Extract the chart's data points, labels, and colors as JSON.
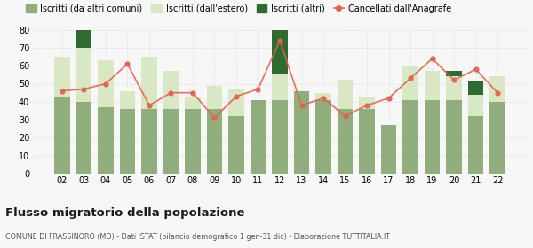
{
  "years": [
    "02",
    "03",
    "04",
    "05",
    "06",
    "07",
    "08",
    "09",
    "10",
    "11",
    "12",
    "13",
    "14",
    "15",
    "16",
    "17",
    "18",
    "19",
    "20",
    "21",
    "22"
  ],
  "iscritti_comuni": [
    43,
    40,
    37,
    36,
    36,
    36,
    36,
    36,
    32,
    41,
    41,
    46,
    41,
    36,
    36,
    27,
    41,
    41,
    41,
    32,
    40
  ],
  "iscritti_estero": [
    22,
    30,
    26,
    10,
    29,
    21,
    7,
    13,
    15,
    0,
    14,
    0,
    4,
    16,
    7,
    0,
    19,
    16,
    13,
    12,
    14
  ],
  "iscritti_altri": [
    0,
    10,
    0,
    0,
    0,
    0,
    0,
    0,
    0,
    0,
    27,
    0,
    0,
    0,
    0,
    0,
    0,
    0,
    3,
    7,
    0
  ],
  "cancellati": [
    46,
    47,
    50,
    61,
    38,
    45,
    45,
    31,
    43,
    47,
    74,
    38,
    42,
    32,
    38,
    42,
    53,
    64,
    52,
    58,
    45
  ],
  "color_comuni": "#8fae7b",
  "color_estero": "#d9e8c4",
  "color_altri": "#2e6b30",
  "color_cancellati": "#e8604c",
  "background_color": "#f7f7f7",
  "grid_color": "#cccccc",
  "title": "Flusso migratorio della popolazione",
  "subtitle": "COMUNE DI FRASSINORO (MO) - Dati ISTAT (bilancio demografico 1 gen-31 dic) - Elaborazione TUTTITALIA.IT",
  "legend_labels": [
    "Iscritti (da altri comuni)",
    "Iscritti (dall'estero)",
    "Iscritti (altri)",
    "Cancellati dall'Anagrafe"
  ],
  "ylim": [
    0,
    80
  ],
  "yticks": [
    0,
    10,
    20,
    30,
    40,
    50,
    60,
    70,
    80
  ]
}
